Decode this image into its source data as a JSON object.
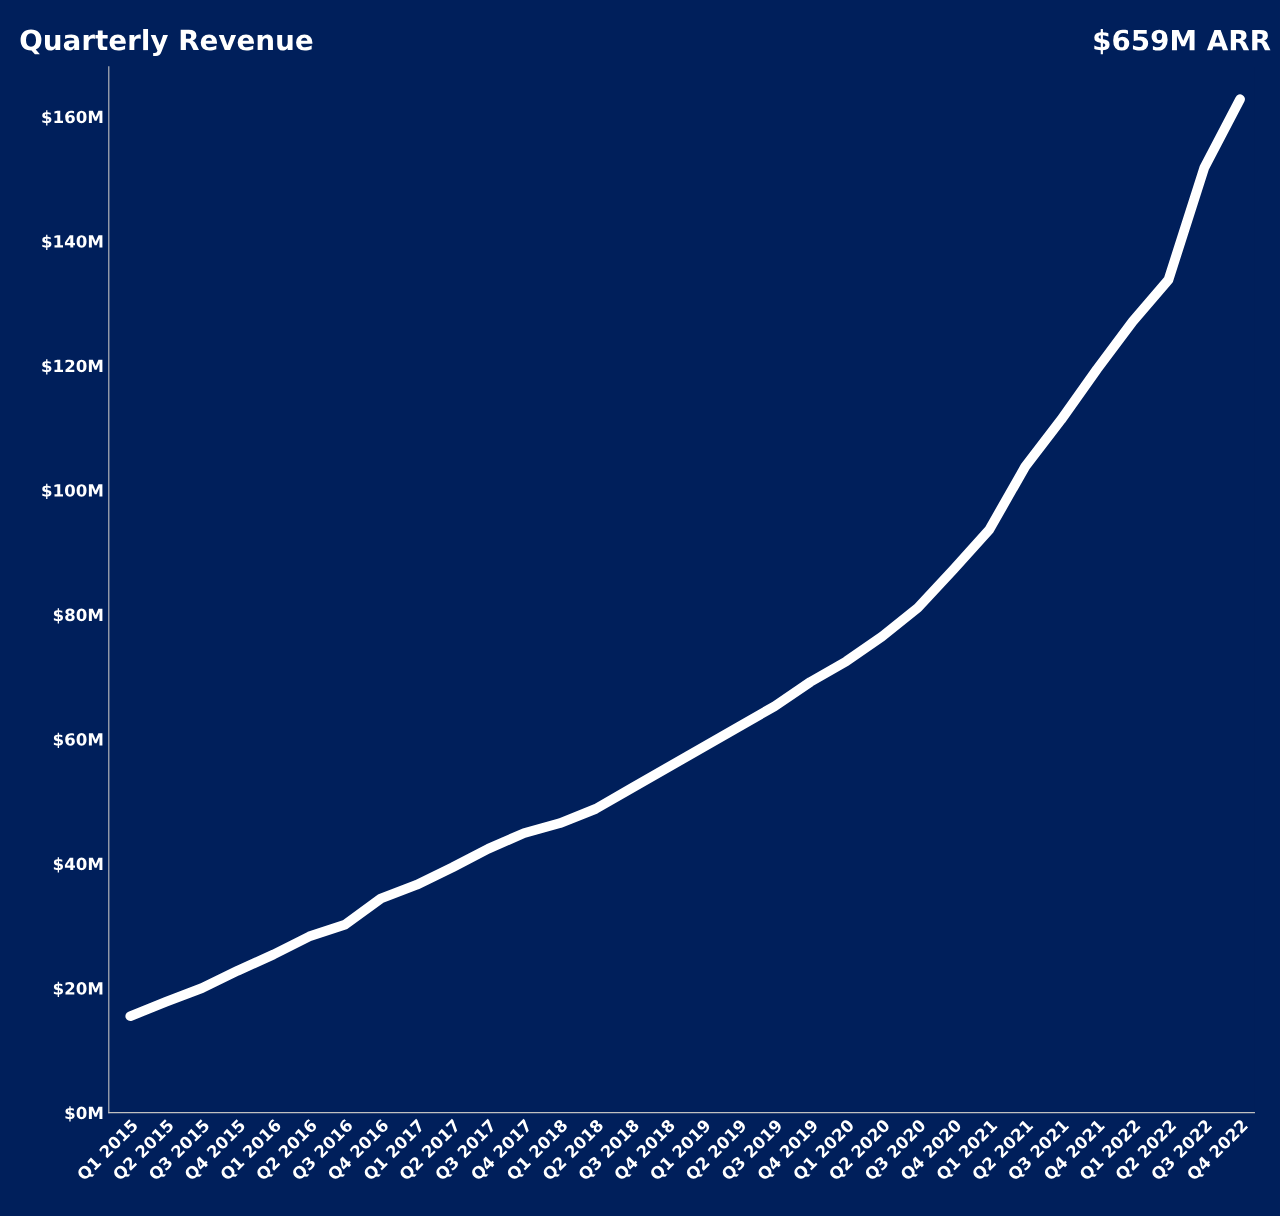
{
  "chart_data": {
    "type": "line",
    "title": "Quarterly Revenue",
    "annotations": [
      "$659M ARR"
    ],
    "categories": [
      "Q1 2015",
      "Q2 2015",
      "Q3 2015",
      "Q4 2015",
      "Q1 2016",
      "Q2 2016",
      "Q3 2016",
      "Q4 2016",
      "Q1 2017",
      "Q2 2017",
      "Q3 2017",
      "Q4 2017",
      "Q1 2018",
      "Q2 2018",
      "Q3 2018",
      "Q4 2018",
      "Q1 2019",
      "Q2 2019",
      "Q3 2019",
      "Q4 2019",
      "Q1 2020",
      "Q2 2020",
      "Q3 2020",
      "Q4 2020",
      "Q1 2021",
      "Q2 2021",
      "Q3 2021",
      "Q4 2021",
      "Q1 2022",
      "Q2 2022",
      "Q3 2022",
      "Q4 2022"
    ],
    "series": [
      {
        "color": "#ffffff",
        "values": [
          15.5,
          17.8,
          20.0,
          22.8,
          25.4,
          28.3,
          30.2,
          34.4,
          36.6,
          39.4,
          42.4,
          44.9,
          46.5,
          48.8,
          52.1,
          55.4,
          58.7,
          62.0,
          65.3,
          69.2,
          72.5,
          76.5,
          81.1,
          87.3,
          93.7,
          103.8,
          111.3,
          119.4,
          127.1,
          133.8,
          151.8,
          162.8
        ]
      }
    ],
    "ylim": [
      0,
      168
    ],
    "yticks": [
      {
        "value": 0,
        "label": "$0M"
      },
      {
        "value": 20,
        "label": "$20M"
      },
      {
        "value": 40,
        "label": "$40M"
      },
      {
        "value": 60,
        "label": "$60M"
      },
      {
        "value": 80,
        "label": "$80M"
      },
      {
        "value": 100,
        "label": "$100M"
      },
      {
        "value": 120,
        "label": "$120M"
      },
      {
        "value": 140,
        "label": "$140M"
      },
      {
        "value": 160,
        "label": "$160M"
      }
    ],
    "grid": false,
    "legend": false,
    "marker": "none",
    "line_style": "solid"
  }
}
